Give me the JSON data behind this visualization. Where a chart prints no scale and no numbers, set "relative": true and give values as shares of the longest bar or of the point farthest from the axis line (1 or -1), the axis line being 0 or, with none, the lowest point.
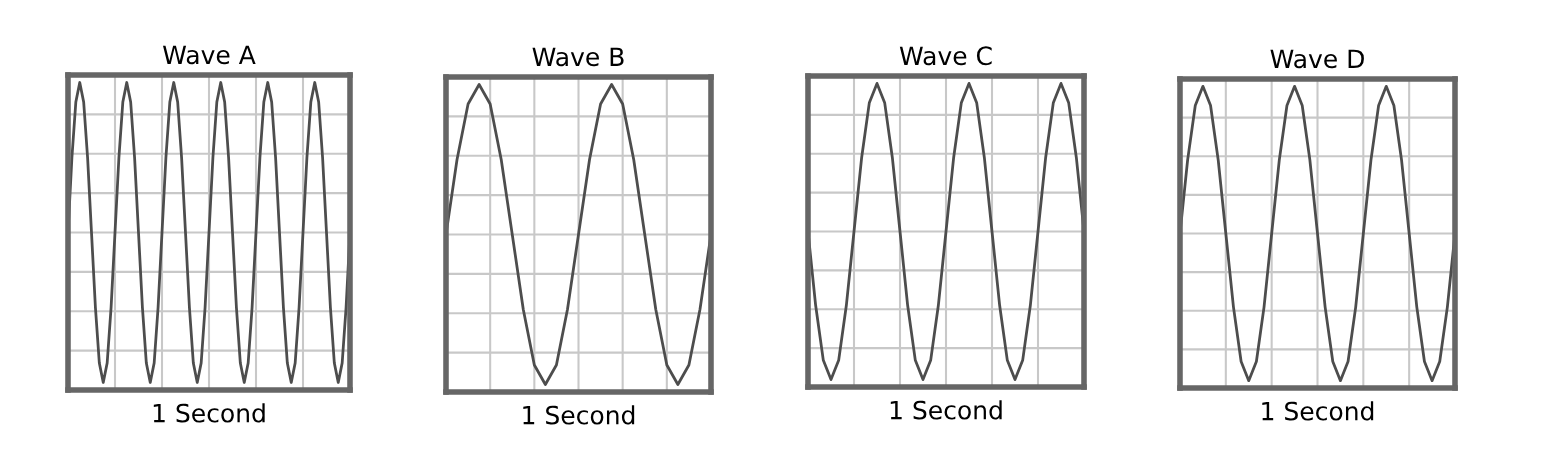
{
  "chart_data": [
    {
      "type": "line",
      "title": "Wave A",
      "xlabel": "1 Second",
      "relative": true,
      "grid": true,
      "tick_labels": false,
      "marker": "none",
      "line_style": "solid",
      "categories": [
        null,
        null,
        null,
        null,
        null,
        null,
        null,
        null,
        null,
        null,
        null,
        null,
        null,
        null,
        null,
        null,
        null,
        null,
        null,
        null,
        null,
        null,
        null,
        null,
        null,
        null,
        null,
        null,
        null,
        null,
        null,
        null,
        null,
        null,
        null,
        null,
        null,
        null,
        null,
        null,
        null,
        null,
        null,
        null,
        null,
        null,
        null,
        null,
        null,
        null,
        null,
        null,
        null,
        null,
        null,
        null,
        null,
        null,
        null,
        null,
        null,
        null,
        null,
        null,
        null,
        null,
        null,
        null,
        null,
        null,
        null,
        null,
        null
      ],
      "series": [
        {
          "color": "#4d4d4d",
          "values": [
            0,
            0.5,
            0.87,
            1,
            0.87,
            0.5,
            0,
            -0.5,
            -0.87,
            -1,
            -0.87,
            -0.5,
            0,
            0.5,
            0.87,
            1,
            0.87,
            0.5,
            0,
            -0.5,
            -0.87,
            -1,
            -0.87,
            -0.5,
            0,
            0.5,
            0.87,
            1,
            0.87,
            0.5,
            0,
            -0.5,
            -0.87,
            -1,
            -0.87,
            -0.5,
            0,
            0.5,
            0.87,
            1,
            0.87,
            0.5,
            0,
            -0.5,
            -0.87,
            -1,
            -0.87,
            -0.5,
            0,
            0.5,
            0.87,
            1,
            0.87,
            0.5,
            0,
            -0.5,
            -0.87,
            -1,
            -0.87,
            -0.5,
            0,
            0.5,
            0.87,
            1,
            0.87,
            0.5,
            0,
            -0.5,
            -0.87,
            -1,
            -0.87,
            -0.5,
            0
          ]
        }
      ]
    },
    {
      "type": "line",
      "title": "Wave B",
      "xlabel": "1 Second",
      "relative": true,
      "grid": true,
      "tick_labels": false,
      "marker": "none",
      "line_style": "solid",
      "categories": [
        null,
        null,
        null,
        null,
        null,
        null,
        null,
        null,
        null,
        null,
        null,
        null,
        null,
        null,
        null,
        null,
        null,
        null,
        null,
        null,
        null,
        null,
        null,
        null,
        null
      ],
      "series": [
        {
          "color": "#4d4d4d",
          "values": [
            0,
            0.5,
            0.87,
            1,
            0.87,
            0.5,
            0,
            -0.5,
            -0.87,
            -1,
            -0.87,
            -0.5,
            0,
            0.5,
            0.87,
            1,
            0.87,
            0.5,
            0,
            -0.5,
            -0.87,
            -1,
            -0.87,
            -0.5,
            0
          ]
        }
      ]
    },
    {
      "type": "line",
      "title": "Wave C",
      "xlabel": "1 Second",
      "relative": true,
      "grid": true,
      "tick_labels": false,
      "marker": "none",
      "line_style": "solid",
      "categories": [
        null,
        null,
        null,
        null,
        null,
        null,
        null,
        null,
        null,
        null,
        null,
        null,
        null,
        null,
        null,
        null,
        null,
        null,
        null,
        null,
        null,
        null,
        null,
        null,
        null,
        null,
        null,
        null,
        null,
        null,
        null,
        null,
        null,
        null,
        null,
        null,
        null
      ],
      "series": [
        {
          "color": "#4d4d4d",
          "values": [
            0,
            -0.5,
            -0.87,
            -1,
            -0.87,
            -0.5,
            0,
            0.5,
            0.87,
            1,
            0.87,
            0.5,
            0,
            -0.5,
            -0.87,
            -1,
            -0.87,
            -0.5,
            0,
            0.5,
            0.87,
            1,
            0.87,
            0.5,
            0,
            -0.5,
            -0.87,
            -1,
            -0.87,
            -0.5,
            0,
            0.5,
            0.87,
            1,
            0.87,
            0.5,
            0
          ]
        }
      ]
    },
    {
      "type": "line",
      "title": "Wave D",
      "xlabel": "1 Second",
      "relative": true,
      "grid": true,
      "tick_labels": false,
      "marker": "none",
      "line_style": "solid",
      "categories": [
        null,
        null,
        null,
        null,
        null,
        null,
        null,
        null,
        null,
        null,
        null,
        null,
        null,
        null,
        null,
        null,
        null,
        null,
        null,
        null,
        null,
        null,
        null,
        null,
        null,
        null,
        null,
        null,
        null,
        null,
        null,
        null,
        null,
        null,
        null,
        null,
        null
      ],
      "series": [
        {
          "color": "#4d4d4d",
          "values": [
            0,
            0.5,
            0.87,
            1,
            0.87,
            0.5,
            0,
            -0.5,
            -0.87,
            -1,
            -0.87,
            -0.5,
            0,
            0.5,
            0.87,
            1,
            0.87,
            0.5,
            0,
            -0.5,
            -0.87,
            -1,
            -0.87,
            -0.5,
            0,
            0.5,
            0.87,
            1,
            0.87,
            0.5,
            0,
            -0.5,
            -0.87,
            -1,
            -0.87,
            -0.5,
            0
          ]
        }
      ]
    }
  ]
}
